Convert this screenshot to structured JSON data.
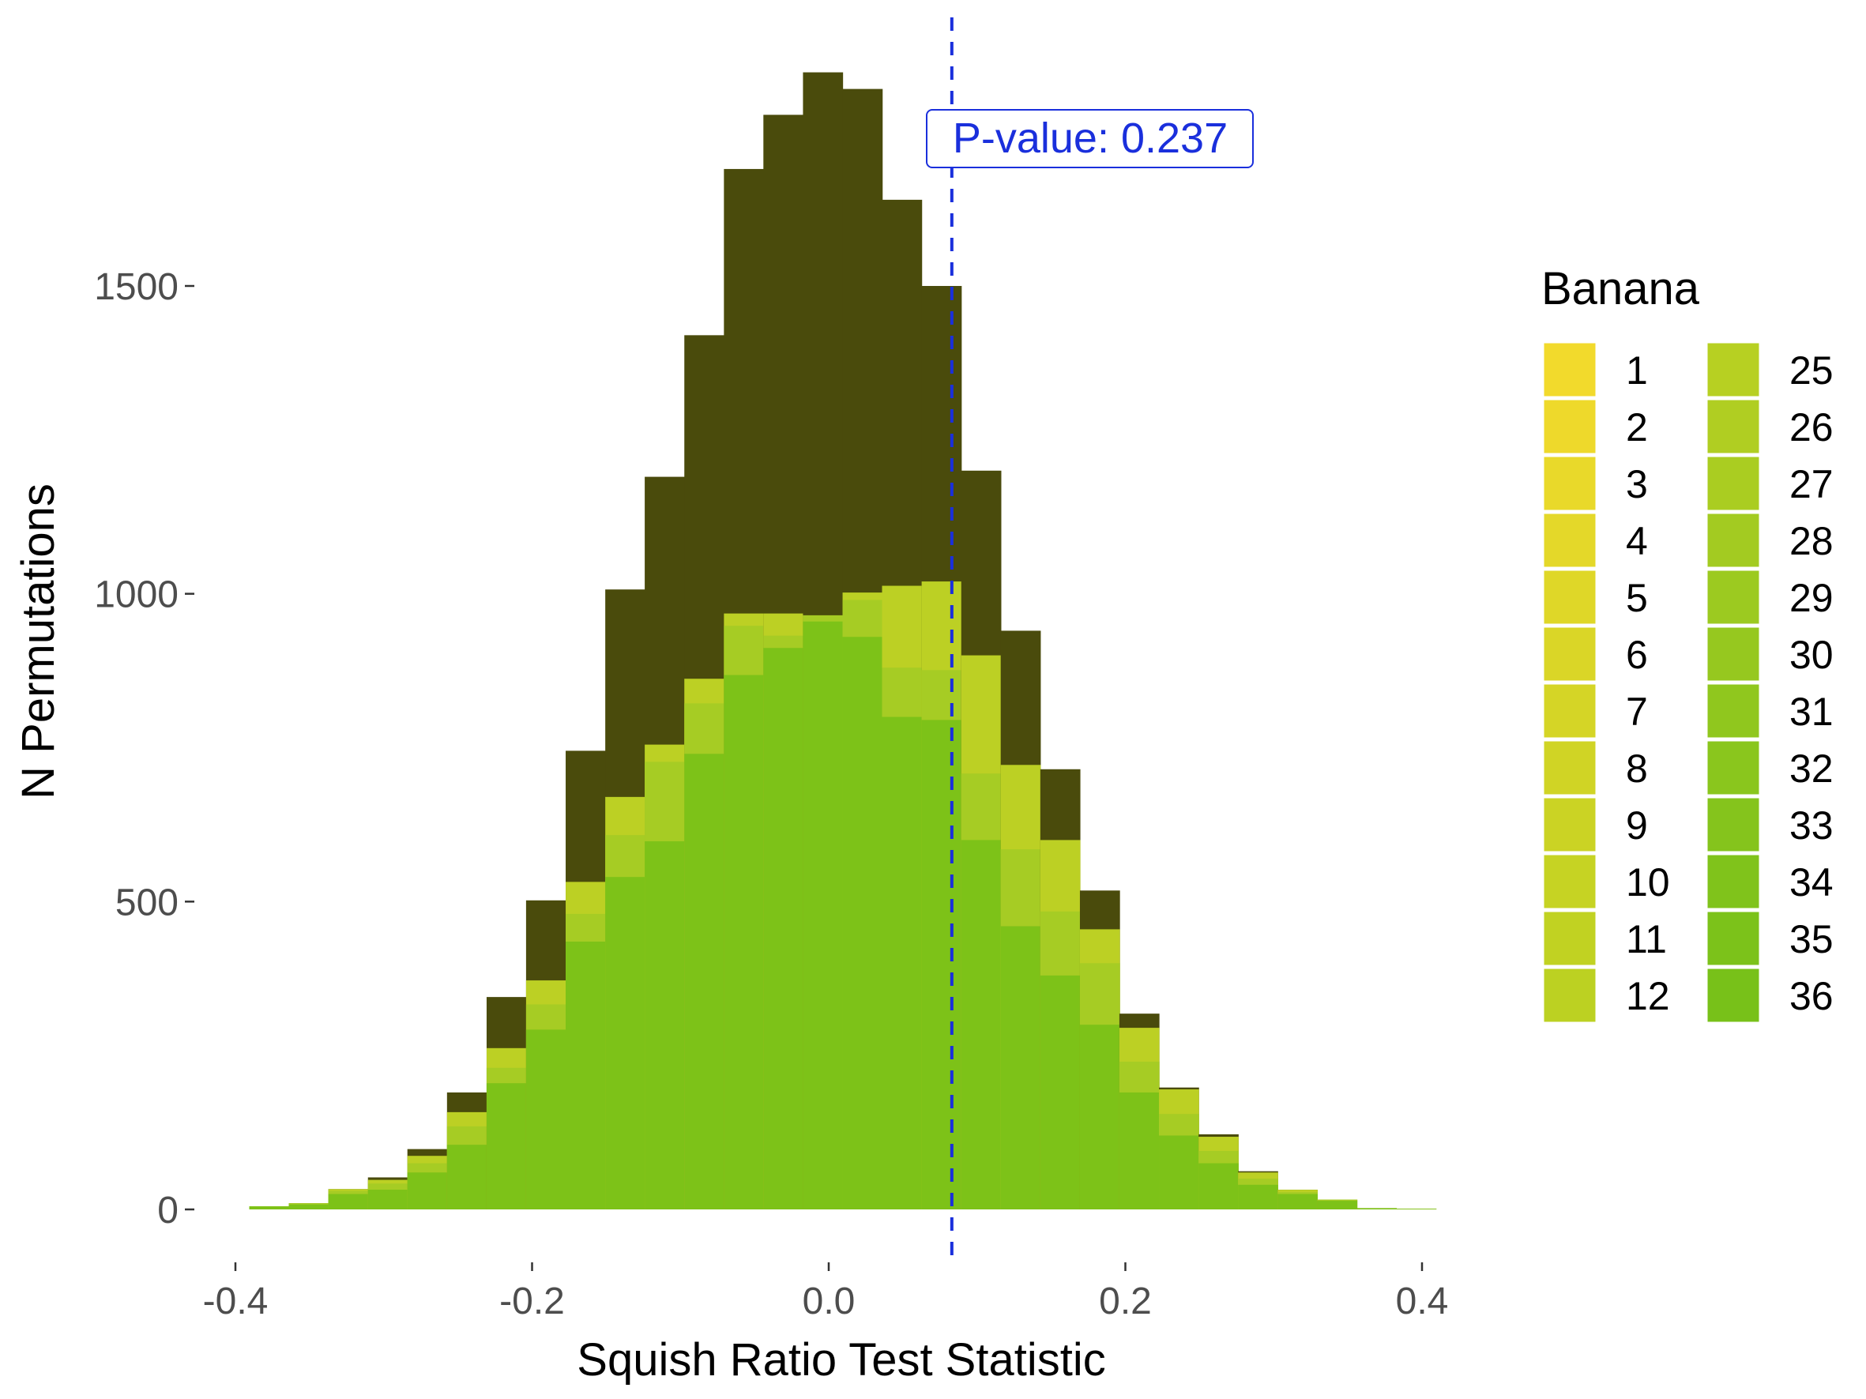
{
  "chart_data": {
    "type": "bar",
    "subtype": "stacked-histogram",
    "title": "",
    "xlabel": "Squish Ratio Test Statistic",
    "ylabel": "N Permutations",
    "xlim": [
      -0.41,
      0.42
    ],
    "ylim": [
      -90,
      1850
    ],
    "x_ticks": [
      -0.4,
      -0.2,
      0.0,
      0.2,
      0.4
    ],
    "x_tick_labels": [
      "-0.4",
      "-0.2",
      "0.0",
      "0.2",
      "0.4"
    ],
    "y_ticks": [
      0,
      500,
      1000,
      1500
    ],
    "y_tick_labels": [
      "0",
      "500",
      "1000",
      "1500"
    ],
    "bin_width": 0.0267,
    "bins": [
      {
        "x": -0.3773,
        "total": 5,
        "light": 5,
        "mid": 5,
        "green": 5
      },
      {
        "x": -0.3507,
        "total": 10,
        "light": 10,
        "mid": 10,
        "green": 8
      },
      {
        "x": -0.324,
        "total": 33,
        "light": 33,
        "mid": 30,
        "green": 25
      },
      {
        "x": -0.2973,
        "total": 52,
        "light": 48,
        "mid": 42,
        "green": 32
      },
      {
        "x": -0.2707,
        "total": 98,
        "light": 87,
        "mid": 75,
        "green": 60
      },
      {
        "x": -0.244,
        "total": 190,
        "light": 158,
        "mid": 135,
        "green": 105
      },
      {
        "x": -0.2173,
        "total": 345,
        "light": 262,
        "mid": 230,
        "green": 205
      },
      {
        "x": -0.1907,
        "total": 502,
        "light": 372,
        "mid": 333,
        "green": 292
      },
      {
        "x": -0.164,
        "total": 745,
        "light": 532,
        "mid": 480,
        "green": 435
      },
      {
        "x": -0.1373,
        "total": 1007,
        "light": 670,
        "mid": 608,
        "green": 540
      },
      {
        "x": -0.1107,
        "total": 1190,
        "light": 755,
        "mid": 727,
        "green": 598
      },
      {
        "x": -0.084,
        "total": 1420,
        "light": 862,
        "mid": 822,
        "green": 740
      },
      {
        "x": -0.0573,
        "total": 1690,
        "light": 968,
        "mid": 948,
        "green": 868
      },
      {
        "x": -0.0307,
        "total": 1778,
        "light": 968,
        "mid": 932,
        "green": 912
      },
      {
        "x": -0.004,
        "total": 1847,
        "light": 965,
        "mid": 965,
        "green": 955
      },
      {
        "x": 0.0227,
        "total": 1820,
        "light": 1002,
        "mid": 990,
        "green": 930
      },
      {
        "x": 0.0493,
        "total": 1640,
        "light": 1013,
        "mid": 880,
        "green": 800
      },
      {
        "x": 0.076,
        "total": 1500,
        "light": 1020,
        "mid": 876,
        "green": 795
      },
      {
        "x": 0.1027,
        "total": 1200,
        "light": 900,
        "mid": 708,
        "green": 600
      },
      {
        "x": 0.1293,
        "total": 940,
        "light": 722,
        "mid": 585,
        "green": 460
      },
      {
        "x": 0.156,
        "total": 715,
        "light": 600,
        "mid": 484,
        "green": 380
      },
      {
        "x": 0.1827,
        "total": 518,
        "light": 455,
        "mid": 400,
        "green": 300
      },
      {
        "x": 0.2093,
        "total": 318,
        "light": 295,
        "mid": 240,
        "green": 190
      },
      {
        "x": 0.236,
        "total": 198,
        "light": 195,
        "mid": 155,
        "green": 120
      },
      {
        "x": 0.2627,
        "total": 122,
        "light": 118,
        "mid": 95,
        "green": 75
      },
      {
        "x": 0.2893,
        "total": 62,
        "light": 60,
        "mid": 50,
        "green": 40
      },
      {
        "x": 0.316,
        "total": 32,
        "light": 32,
        "mid": 28,
        "green": 25
      },
      {
        "x": 0.3427,
        "total": 16,
        "light": 16,
        "mid": 16,
        "green": 14
      },
      {
        "x": 0.3693,
        "total": 2,
        "light": 2,
        "mid": 2,
        "green": 2
      },
      {
        "x": 0.396,
        "total": 1,
        "light": 1,
        "mid": 1,
        "green": 1
      }
    ],
    "background_color": "#4a4b0c",
    "stack_colors": {
      "light": "#bcd024",
      "mid": "#a6cc24",
      "green": "#7dc218"
    },
    "reference_line": {
      "x": 0.083,
      "color": "#1a2fdc",
      "style": "dashed",
      "label": "P-value: 0.237"
    },
    "legend": {
      "title": "Banana",
      "placement": "right",
      "columns": [
        {
          "items": [
            {
              "label": "1",
              "color": "#f2da2c"
            },
            {
              "label": "2",
              "color": "#eed92b"
            },
            {
              "label": "3",
              "color": "#e9d92a"
            },
            {
              "label": "4",
              "color": "#e4d829"
            },
            {
              "label": "5",
              "color": "#dfd728"
            },
            {
              "label": "6",
              "color": "#dad627"
            },
            {
              "label": "7",
              "color": "#d5d526"
            },
            {
              "label": "8",
              "color": "#d0d425"
            },
            {
              "label": "9",
              "color": "#cbd324"
            },
            {
              "label": "10",
              "color": "#c6d323"
            },
            {
              "label": "11",
              "color": "#c1d222"
            },
            {
              "label": "12",
              "color": "#bcd122"
            }
          ]
        },
        {
          "items": [
            {
              "label": "25",
              "color": "#b7d022"
            },
            {
              "label": "26",
              "color": "#b0ce22"
            },
            {
              "label": "27",
              "color": "#aacd21"
            },
            {
              "label": "28",
              "color": "#a3cb21"
            },
            {
              "label": "29",
              "color": "#9cca20"
            },
            {
              "label": "30",
              "color": "#96c81f"
            },
            {
              "label": "31",
              "color": "#90c71e"
            },
            {
              "label": "32",
              "color": "#8ac61d"
            },
            {
              "label": "33",
              "color": "#85c41c"
            },
            {
              "label": "34",
              "color": "#80c31b"
            },
            {
              "label": "35",
              "color": "#7cc21a"
            },
            {
              "label": "36",
              "color": "#78c119"
            }
          ]
        }
      ]
    }
  }
}
